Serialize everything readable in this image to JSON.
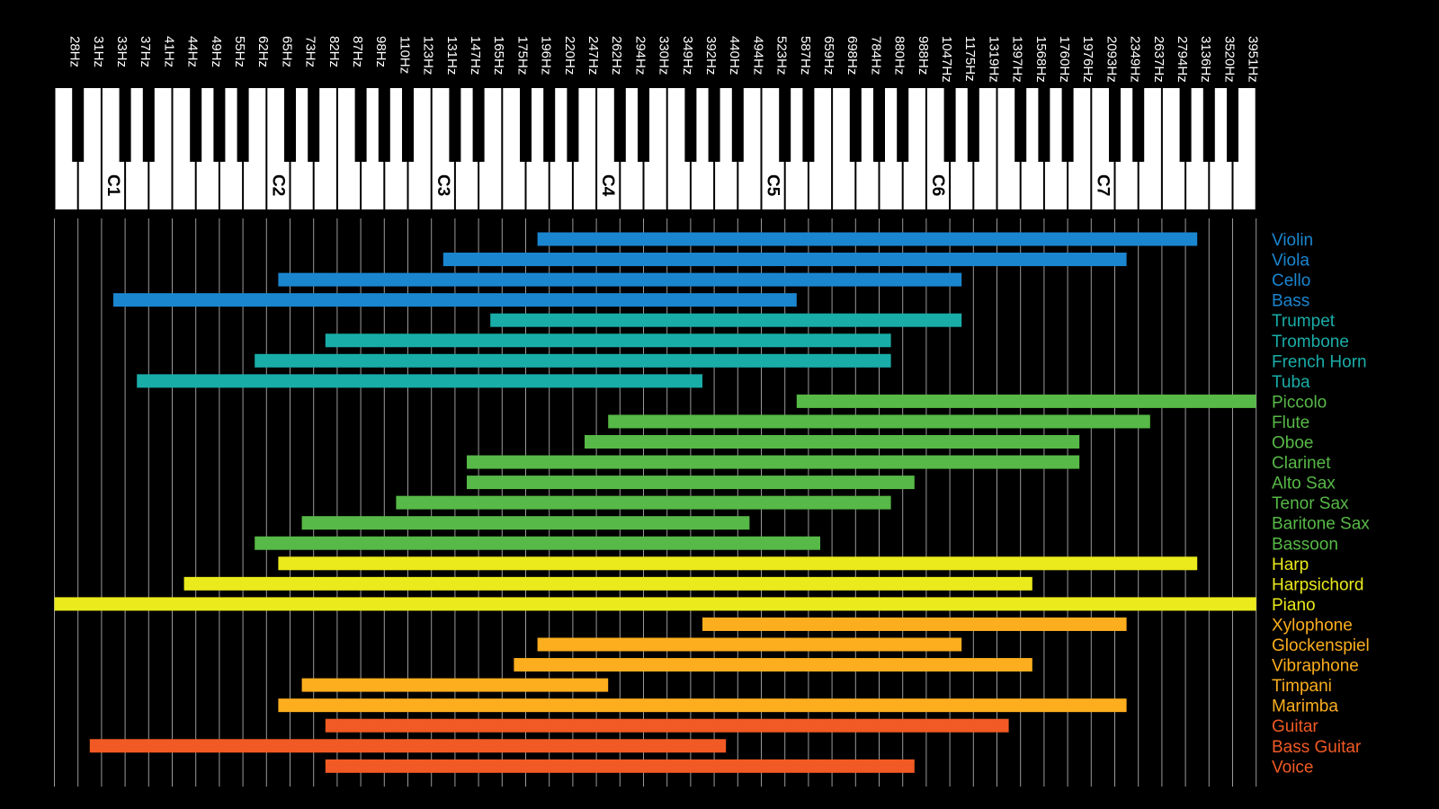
{
  "chart_data": {
    "type": "bar",
    "orientation": "horizontal-range",
    "x_ticks": [
      "28Hz",
      "31Hz",
      "33Hz",
      "37Hz",
      "41Hz",
      "44Hz",
      "49Hz",
      "55Hz",
      "62Hz",
      "65Hz",
      "73Hz",
      "82Hz",
      "87Hz",
      "98Hz",
      "110Hz",
      "123Hz",
      "131Hz",
      "147Hz",
      "165Hz",
      "175Hz",
      "196Hz",
      "220Hz",
      "247Hz",
      "262Hz",
      "294Hz",
      "330Hz",
      "349Hz",
      "392Hz",
      "440Hz",
      "494Hz",
      "523Hz",
      "587Hz",
      "659Hz",
      "698Hz",
      "784Hz",
      "880Hz",
      "988Hz",
      "1047Hz",
      "1175Hz",
      "1319Hz",
      "1397Hz",
      "1568Hz",
      "1760Hz",
      "1976Hz",
      "2093Hz",
      "2349Hz",
      "2637Hz",
      "2794Hz",
      "3136Hz",
      "3520Hz",
      "3951Hz"
    ],
    "octave_labels": [
      {
        "label": "C1",
        "freq": "33Hz"
      },
      {
        "label": "C2",
        "freq": "65Hz"
      },
      {
        "label": "C3",
        "freq": "131Hz"
      },
      {
        "label": "C4",
        "freq": "262Hz"
      },
      {
        "label": "C5",
        "freq": "523Hz"
      },
      {
        "label": "C6",
        "freq": "1047Hz"
      },
      {
        "label": "C7",
        "freq": "2093Hz"
      }
    ],
    "grid": true,
    "legend": "right",
    "series": [
      {
        "name": "Violin",
        "low": "196Hz",
        "high": "3136Hz",
        "color": "#1b86d0"
      },
      {
        "name": "Viola",
        "low": "131Hz",
        "high": "2349Hz",
        "color": "#1b86d0"
      },
      {
        "name": "Cello",
        "low": "65Hz",
        "high": "1175Hz",
        "color": "#1b86d0"
      },
      {
        "name": "Bass",
        "low": "33Hz",
        "high": "587Hz",
        "color": "#1b86d0"
      },
      {
        "name": "Trumpet",
        "low": "165Hz",
        "high": "1175Hz",
        "color": "#19ada8"
      },
      {
        "name": "Trombone",
        "low": "82Hz",
        "high": "880Hz",
        "color": "#19ada8"
      },
      {
        "name": "French Horn",
        "low": "62Hz",
        "high": "880Hz",
        "color": "#19ada8"
      },
      {
        "name": "Tuba",
        "low": "37Hz",
        "high": "392Hz",
        "color": "#19ada8"
      },
      {
        "name": "Piccolo",
        "low": "587Hz",
        "high": "3951Hz",
        "color": "#57b947"
      },
      {
        "name": "Flute",
        "low": "262Hz",
        "high": "2637Hz",
        "color": "#57b947"
      },
      {
        "name": "Oboe",
        "low": "247Hz",
        "high": "1976Hz",
        "color": "#57b947"
      },
      {
        "name": "Clarinet",
        "low": "147Hz",
        "high": "1976Hz",
        "color": "#57b947"
      },
      {
        "name": "Alto Sax",
        "low": "147Hz",
        "high": "988Hz",
        "color": "#57b947"
      },
      {
        "name": "Tenor Sax",
        "low": "110Hz",
        "high": "880Hz",
        "color": "#57b947"
      },
      {
        "name": "Baritone Sax",
        "low": "73Hz",
        "high": "494Hz",
        "color": "#57b947"
      },
      {
        "name": "Bassoon",
        "low": "62Hz",
        "high": "659Hz",
        "color": "#57b947"
      },
      {
        "name": "Harp",
        "low": "65Hz",
        "high": "3136Hz",
        "color": "#eaea1c"
      },
      {
        "name": "Harpsichord",
        "low": "44Hz",
        "high": "1568Hz",
        "color": "#eaea1c"
      },
      {
        "name": "Piano",
        "low": "28Hz",
        "high": "3951Hz",
        "color": "#eaea1c"
      },
      {
        "name": "Xylophone",
        "low": "392Hz",
        "high": "2349Hz",
        "color": "#fcae1e"
      },
      {
        "name": "Glockenspiel",
        "low": "196Hz",
        "high": "1175Hz",
        "color": "#fcae1e"
      },
      {
        "name": "Vibraphone",
        "low": "175Hz",
        "high": "1568Hz",
        "color": "#fcae1e"
      },
      {
        "name": "Timpani",
        "low": "73Hz",
        "high": "262Hz",
        "color": "#fcae1e"
      },
      {
        "name": "Marimba",
        "low": "65Hz",
        "high": "2349Hz",
        "color": "#fcae1e"
      },
      {
        "name": "Guitar",
        "low": "82Hz",
        "high": "1397Hz",
        "color": "#f15a24"
      },
      {
        "name": "Bass Guitar",
        "low": "31Hz",
        "high": "440Hz",
        "color": "#f15a24"
      },
      {
        "name": "Voice",
        "low": "82Hz",
        "high": "988Hz",
        "color": "#f15a24"
      }
    ]
  }
}
